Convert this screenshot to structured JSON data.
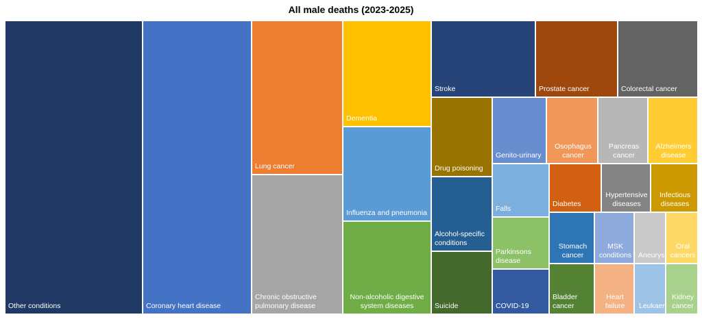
{
  "chart_data": {
    "type": "treemap",
    "title": "All male deaths (2023-2025)",
    "tiles": [
      {
        "label": "Other conditions",
        "color": "#203864",
        "align": "left"
      },
      {
        "label": "Coronary heart disease",
        "color": "#4472c4",
        "align": "left"
      },
      {
        "label": "Lung cancer",
        "color": "#ed7d31",
        "align": "left"
      },
      {
        "label": "Chronic obstructive pulmonary disease",
        "color": "#a5a5a5",
        "align": "left"
      },
      {
        "label": "Dementia",
        "color": "#ffc000",
        "align": "left"
      },
      {
        "label": "Influenza and pneumonia",
        "color": "#5b9bd5",
        "align": "left"
      },
      {
        "label": "Non-alcoholic digestive system diseases",
        "color": "#70ad47",
        "align": "center"
      },
      {
        "label": "Stroke",
        "color": "#264478",
        "align": "left"
      },
      {
        "label": "Prostate cancer",
        "color": "#9e480e",
        "align": "left"
      },
      {
        "label": "Colorectal cancer",
        "color": "#636363",
        "align": "left"
      },
      {
        "label": "Drug poisoning",
        "color": "#997300",
        "align": "left"
      },
      {
        "label": "Alcohol-specific conditions",
        "color": "#255e91",
        "align": "left"
      },
      {
        "label": "Suicide",
        "color": "#43682b",
        "align": "left"
      },
      {
        "label": "Genito-urinary",
        "color": "#698ed0",
        "align": "left"
      },
      {
        "label": "Falls",
        "color": "#7cafdd",
        "align": "left"
      },
      {
        "label": "Parkinsons disease",
        "color": "#8cc168",
        "align": "left"
      },
      {
        "label": "COVID-19",
        "color": "#335aa1",
        "align": "left"
      },
      {
        "label": "Osophagus cancer",
        "color": "#f1975a",
        "align": "center"
      },
      {
        "label": "Pancreas cancer",
        "color": "#b7b7b7",
        "align": "center"
      },
      {
        "label": "Alzheimers disease",
        "color": "#ffcd33",
        "align": "center"
      },
      {
        "label": "Diabetes",
        "color": "#d26012",
        "align": "left"
      },
      {
        "label": "Hypertensive diseases",
        "color": "#848484",
        "align": "center"
      },
      {
        "label": "Infectious diseases",
        "color": "#cc9a00",
        "align": "center"
      },
      {
        "label": "Stomach cancer",
        "color": "#2e75b6",
        "align": "center"
      },
      {
        "label": "MSK conditions",
        "color": "#8faadc",
        "align": "center"
      },
      {
        "label": "Aneurysms",
        "color": "#c9c9c9",
        "align": "center"
      },
      {
        "label": "Oral cancers",
        "color": "#ffd966",
        "align": "center"
      },
      {
        "label": "Bladder cancer",
        "color": "#548235",
        "align": "left"
      },
      {
        "label": "Heart failure",
        "color": "#f4b183",
        "align": "center"
      },
      {
        "label": "Leukaemia",
        "color": "#9dc3e6",
        "align": "center"
      },
      {
        "label": "Kidney cancer",
        "color": "#a9d18e",
        "align": "center"
      }
    ]
  }
}
